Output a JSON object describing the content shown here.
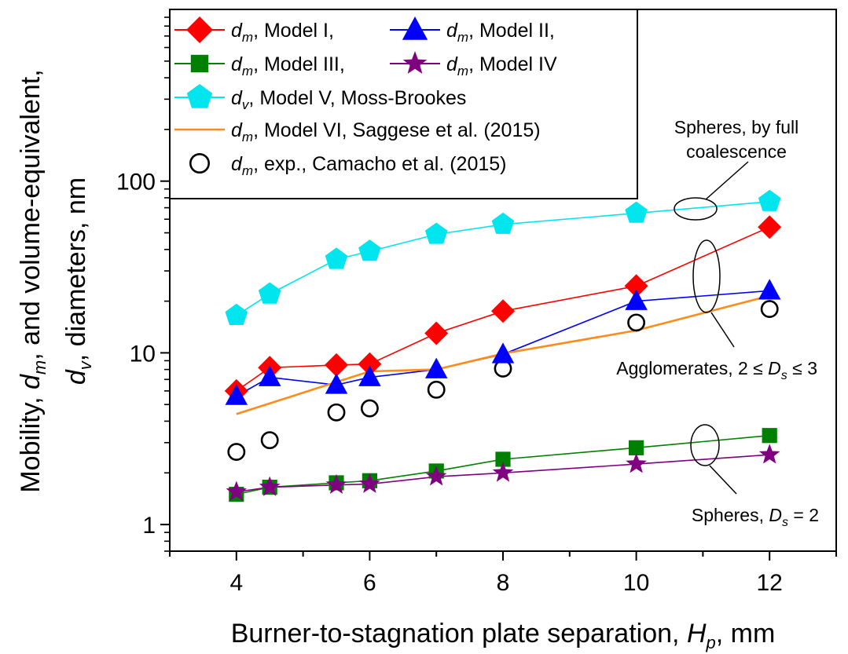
{
  "chart_data": {
    "type": "line",
    "x_axis": {
      "label": "Burner-to-stagnation plate separation, ",
      "label_symbol": "H",
      "label_subscript": "p",
      "label_unit": ", mm",
      "range": [
        3,
        13
      ],
      "ticks": [
        4,
        6,
        8,
        10,
        12
      ],
      "tick_labels": [
        "4",
        "6",
        "8",
        "10",
        "12"
      ]
    },
    "y_axis": {
      "scale": "log",
      "label_line1": "Mobility, d_m, and volume-equivalent,",
      "label_line2": "d_v, diameters, nm",
      "range": [
        0.7,
        1000
      ],
      "ticks": [
        1,
        10,
        100
      ],
      "tick_labels": [
        "1",
        "10",
        "100"
      ]
    },
    "series": [
      {
        "name": "Model I,",
        "symbol": "d",
        "subscript": "m",
        "marker": "diamond",
        "color": "#ff0000",
        "line": "solid",
        "x": [
          4,
          4.5,
          5.5,
          6,
          7,
          8,
          10,
          12
        ],
        "values": [
          6,
          8.2,
          8.5,
          8.6,
          13,
          17.5,
          24.5,
          54
        ]
      },
      {
        "name": "Model II,",
        "symbol": "d",
        "subscript": "m",
        "marker": "triangle",
        "color": "#0000ff",
        "line": "solid",
        "x": [
          4,
          4.5,
          5.5,
          6,
          7,
          8,
          10,
          12
        ],
        "values": [
          5.6,
          7.2,
          6.5,
          7.2,
          8,
          9.8,
          20,
          23
        ]
      },
      {
        "name": "Model III,",
        "symbol": "d",
        "subscript": "m",
        "marker": "square",
        "color": "#008000",
        "line": "solid",
        "x": [
          4,
          4.5,
          5.5,
          6,
          7,
          8,
          10,
          12
        ],
        "values": [
          1.5,
          1.65,
          1.75,
          1.8,
          2.05,
          2.4,
          2.8,
          3.3
        ]
      },
      {
        "name": "Model IV",
        "symbol": "d",
        "subscript": "m",
        "marker": "star",
        "color": "#800080",
        "line": "solid",
        "x": [
          4,
          4.5,
          5.5,
          6,
          7,
          8,
          10,
          12
        ],
        "values": [
          1.55,
          1.65,
          1.7,
          1.72,
          1.9,
          2.0,
          2.25,
          2.55
        ]
      },
      {
        "name": "Model V, Moss-Brookes",
        "symbol": "d",
        "subscript": "v",
        "marker": "pentagon",
        "color": "#00e5ee",
        "line": "solid",
        "x": [
          4,
          4.5,
          5.5,
          6,
          7,
          8,
          10,
          12
        ],
        "values": [
          16.5,
          22,
          35,
          39,
          49,
          56,
          65,
          76
        ]
      },
      {
        "name": "Model VI, Saggese et al. (2015)",
        "symbol": "d",
        "subscript": "m",
        "marker": "none",
        "color": "#ff8c1a",
        "line": "solid",
        "x": [
          4,
          6,
          7,
          8,
          10,
          12
        ],
        "values": [
          4.4,
          7.8,
          8.0,
          9.9,
          13.5,
          21.5
        ]
      },
      {
        "name": "exp., Camacho et al. (2015)",
        "symbol": "d",
        "subscript": "m",
        "marker": "open-circle",
        "color": "#000000",
        "line": "none",
        "x": [
          4,
          4.5,
          5.5,
          6,
          7,
          8,
          10,
          12
        ],
        "values": [
          2.65,
          3.1,
          4.5,
          4.75,
          6.1,
          8.1,
          15,
          18
        ]
      }
    ],
    "annotations": [
      {
        "text": "Spheres, by full",
        "text2": "coalescence"
      },
      {
        "text": "Agglomerates, 2 ≤ ",
        "symbol": "D",
        "subscript": "s",
        "text_after": " ≤ 3"
      },
      {
        "text": "Spheres, ",
        "symbol": "D",
        "subscript": "s",
        "text_after": " = 2"
      }
    ],
    "legend_position": "top-left",
    "grid": false
  }
}
